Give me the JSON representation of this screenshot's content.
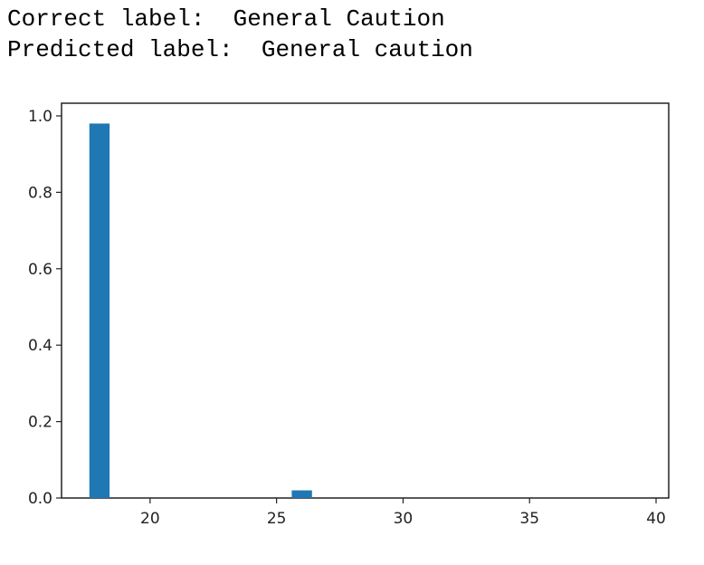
{
  "output": {
    "correct_label_text": "Correct label:  General Caution",
    "predicted_label_text": "Predicted label:  General caution"
  },
  "chart_data": {
    "type": "bar",
    "title": "",
    "xlabel": "",
    "ylabel": "",
    "xlim": [
      16.5,
      40.5
    ],
    "ylim": [
      0,
      1.0
    ],
    "x": [
      18,
      26
    ],
    "values": [
      0.98,
      0.02
    ],
    "bar_width": 0.8,
    "bar_color": "#1f77b4",
    "x_ticks": [
      20,
      25,
      30,
      35,
      40
    ],
    "x_tick_labels": [
      "20",
      "25",
      "30",
      "35",
      "40"
    ],
    "y_ticks": [
      0.0,
      0.2,
      0.4,
      0.6,
      0.8,
      1.0
    ],
    "y_tick_labels": [
      "0.0",
      "0.2",
      "0.4",
      "0.6",
      "0.8",
      "1.0"
    ],
    "grid": false,
    "legend": "none"
  }
}
